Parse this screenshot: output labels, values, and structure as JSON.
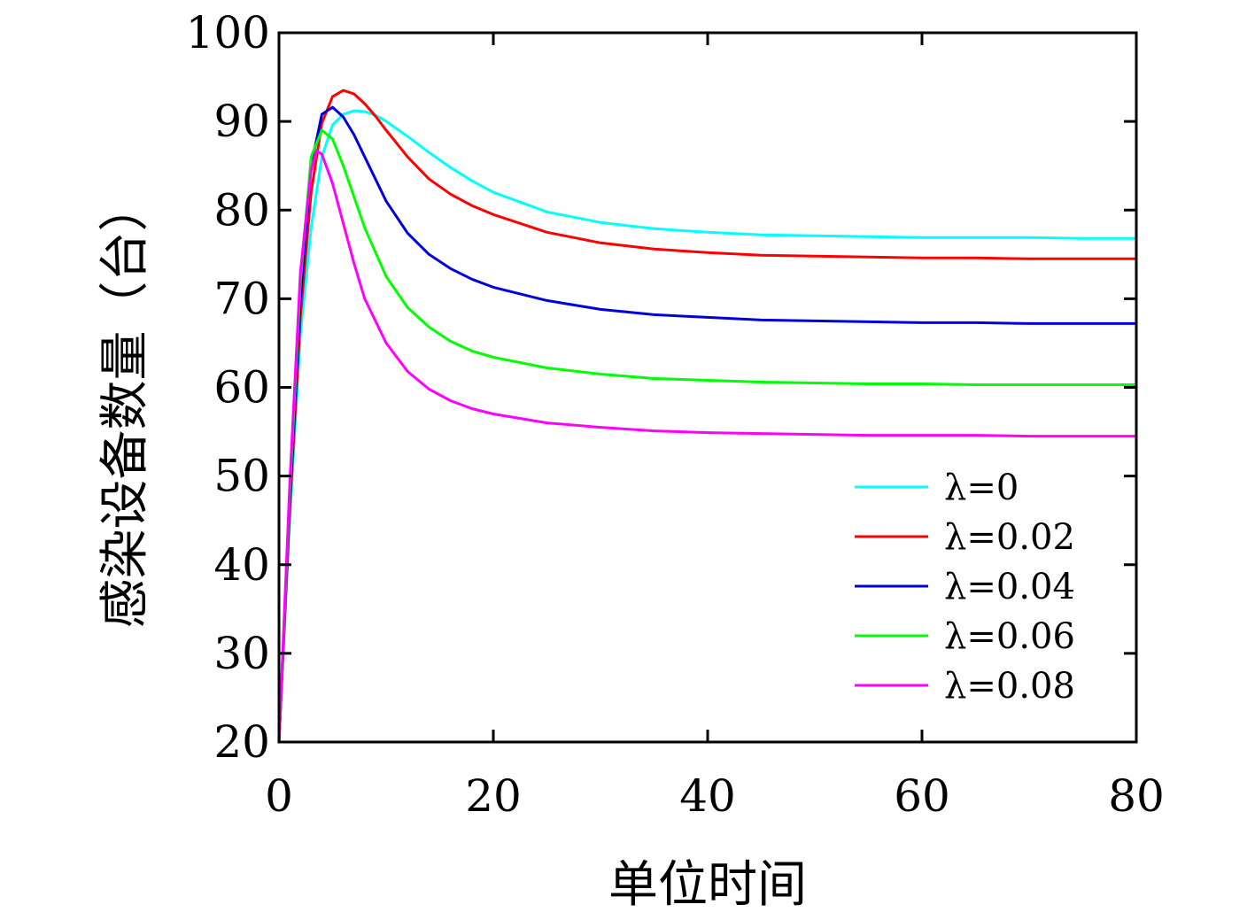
{
  "chart_data": {
    "type": "line",
    "title": "",
    "xlabel": "单位时间",
    "ylabel": "感染设备数量（台）",
    "xlim": [
      0,
      80
    ],
    "ylim": [
      20,
      100
    ],
    "xticks": [
      0,
      20,
      40,
      60,
      80
    ],
    "yticks": [
      20,
      30,
      40,
      50,
      60,
      70,
      80,
      90,
      100
    ],
    "grid": false,
    "legend_position": "bottom-right",
    "series": [
      {
        "name": "λ=0",
        "color": "#00ffff",
        "x": [
          0,
          1,
          2,
          3,
          4,
          5,
          6,
          7,
          8,
          9,
          10,
          12,
          14,
          16,
          18,
          20,
          25,
          30,
          35,
          40,
          45,
          50,
          55,
          60,
          65,
          70,
          75,
          80
        ],
        "y": [
          20,
          45,
          66,
          78,
          86,
          89.6,
          90.8,
          91.2,
          91.1,
          90.7,
          90.0,
          88.3,
          86.5,
          84.8,
          83.3,
          82.0,
          79.8,
          78.6,
          77.9,
          77.5,
          77.2,
          77.1,
          77.0,
          76.9,
          76.9,
          76.9,
          76.8,
          76.8
        ]
      },
      {
        "name": "λ=0.02",
        "color": "#ff0000",
        "x": [
          0,
          1,
          2,
          3,
          4,
          5,
          6,
          7,
          8,
          9,
          10,
          12,
          14,
          16,
          18,
          20,
          25,
          30,
          35,
          40,
          45,
          50,
          55,
          60,
          65,
          70,
          75,
          80
        ],
        "y": [
          20,
          46,
          68,
          82,
          89.8,
          92.8,
          93.5,
          93.1,
          92.0,
          90.6,
          89.0,
          86.0,
          83.5,
          81.8,
          80.5,
          79.5,
          77.5,
          76.3,
          75.6,
          75.2,
          74.9,
          74.8,
          74.7,
          74.6,
          74.6,
          74.5,
          74.5,
          74.5
        ]
      },
      {
        "name": "λ=0.04",
        "color": "#0000dd",
        "x": [
          0,
          1,
          2,
          3,
          4,
          5,
          6,
          7,
          8,
          10,
          12,
          14,
          16,
          18,
          20,
          25,
          30,
          35,
          40,
          45,
          50,
          55,
          60,
          65,
          70,
          75,
          80
        ],
        "y": [
          20,
          47,
          70,
          85,
          90.8,
          91.6,
          90.5,
          88.5,
          86.0,
          81.0,
          77.4,
          75.0,
          73.4,
          72.2,
          71.3,
          69.8,
          68.8,
          68.2,
          67.9,
          67.6,
          67.5,
          67.4,
          67.3,
          67.3,
          67.2,
          67.2,
          67.2
        ]
      },
      {
        "name": "λ=0.06",
        "color": "#00ff00",
        "x": [
          0,
          1,
          2,
          3,
          4,
          5,
          6,
          7,
          8,
          10,
          12,
          14,
          16,
          18,
          20,
          25,
          30,
          35,
          40,
          45,
          50,
          55,
          60,
          65,
          70,
          75,
          80
        ],
        "y": [
          20,
          48,
          72,
          86,
          89.0,
          88.0,
          85.0,
          81.5,
          78.0,
          72.5,
          69.0,
          66.8,
          65.2,
          64.1,
          63.4,
          62.2,
          61.5,
          61.0,
          60.8,
          60.6,
          60.5,
          60.4,
          60.4,
          60.3,
          60.3,
          60.3,
          60.3
        ]
      },
      {
        "name": "λ=0.08",
        "color": "#ff00ff",
        "x": [
          0,
          1,
          2,
          3,
          3.5,
          4,
          5,
          6,
          7,
          8,
          10,
          12,
          14,
          16,
          18,
          20,
          25,
          30,
          35,
          40,
          45,
          50,
          55,
          60,
          65,
          70,
          75,
          80
        ],
        "y": [
          20,
          49,
          73,
          84.5,
          86.7,
          86.3,
          83.0,
          78.5,
          74.0,
          70.0,
          65.0,
          61.8,
          59.8,
          58.5,
          57.6,
          57.0,
          56.0,
          55.5,
          55.1,
          54.9,
          54.8,
          54.7,
          54.6,
          54.6,
          54.6,
          54.5,
          54.5,
          54.5
        ]
      }
    ]
  }
}
